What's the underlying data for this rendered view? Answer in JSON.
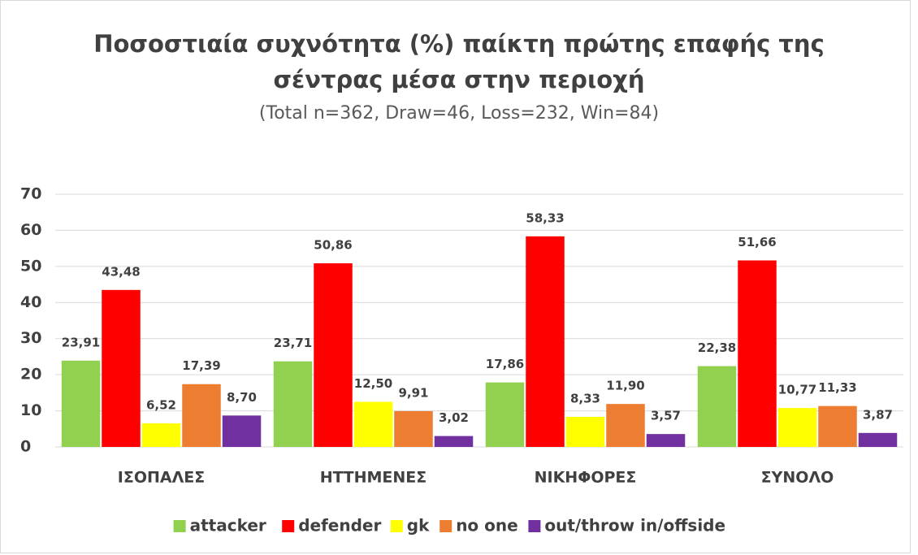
{
  "chart_data": {
    "type": "bar",
    "title": [
      "Ποσοστιαία συχνότητα (%) παίκτη πρώτης επαφής της",
      "σέντρας μέσα στην περιοχή"
    ],
    "subtitle": "(Total n=362, Draw=46, Loss=232, Win=84)",
    "categories": [
      "ΙΣΟΠΑΛΕΣ",
      "ΗΤΤΗΜΕΝΕΣ",
      "ΝΙΚΗΦΟΡΕΣ",
      "ΣΥΝΟΛΟ"
    ],
    "series": [
      {
        "name": "attacker",
        "color": "#92d050",
        "values": [
          23.91,
          23.71,
          17.86,
          22.38
        ],
        "value_labels": [
          "23,91",
          "23,71",
          "17,86",
          "22,38"
        ]
      },
      {
        "name": "defender",
        "color": "#ff0000",
        "values": [
          43.48,
          50.86,
          58.33,
          51.66
        ],
        "value_labels": [
          "43,48",
          "50,86",
          "58,33",
          "51,66"
        ]
      },
      {
        "name": "gk",
        "color": "#ffff00",
        "values": [
          6.52,
          12.5,
          8.33,
          10.77
        ],
        "value_labels": [
          "6,52",
          "12,50",
          "8,33",
          "10,77"
        ]
      },
      {
        "name": "no one",
        "color": "#ed7d31",
        "values": [
          17.39,
          9.91,
          11.9,
          11.33
        ],
        "value_labels": [
          "17,39",
          "9,91",
          "11,90",
          "11,33"
        ]
      },
      {
        "name": "out/throw in/offside",
        "color": "#7030a0",
        "values": [
          8.7,
          3.02,
          3.57,
          3.87
        ],
        "value_labels": [
          "8,70",
          "3,02",
          "3,57",
          "3,87"
        ]
      }
    ],
    "ylim": [
      0,
      70
    ],
    "yticks": [
      0,
      10,
      20,
      30,
      40,
      50,
      60,
      70
    ],
    "grid": true,
    "legend": "bottom"
  }
}
